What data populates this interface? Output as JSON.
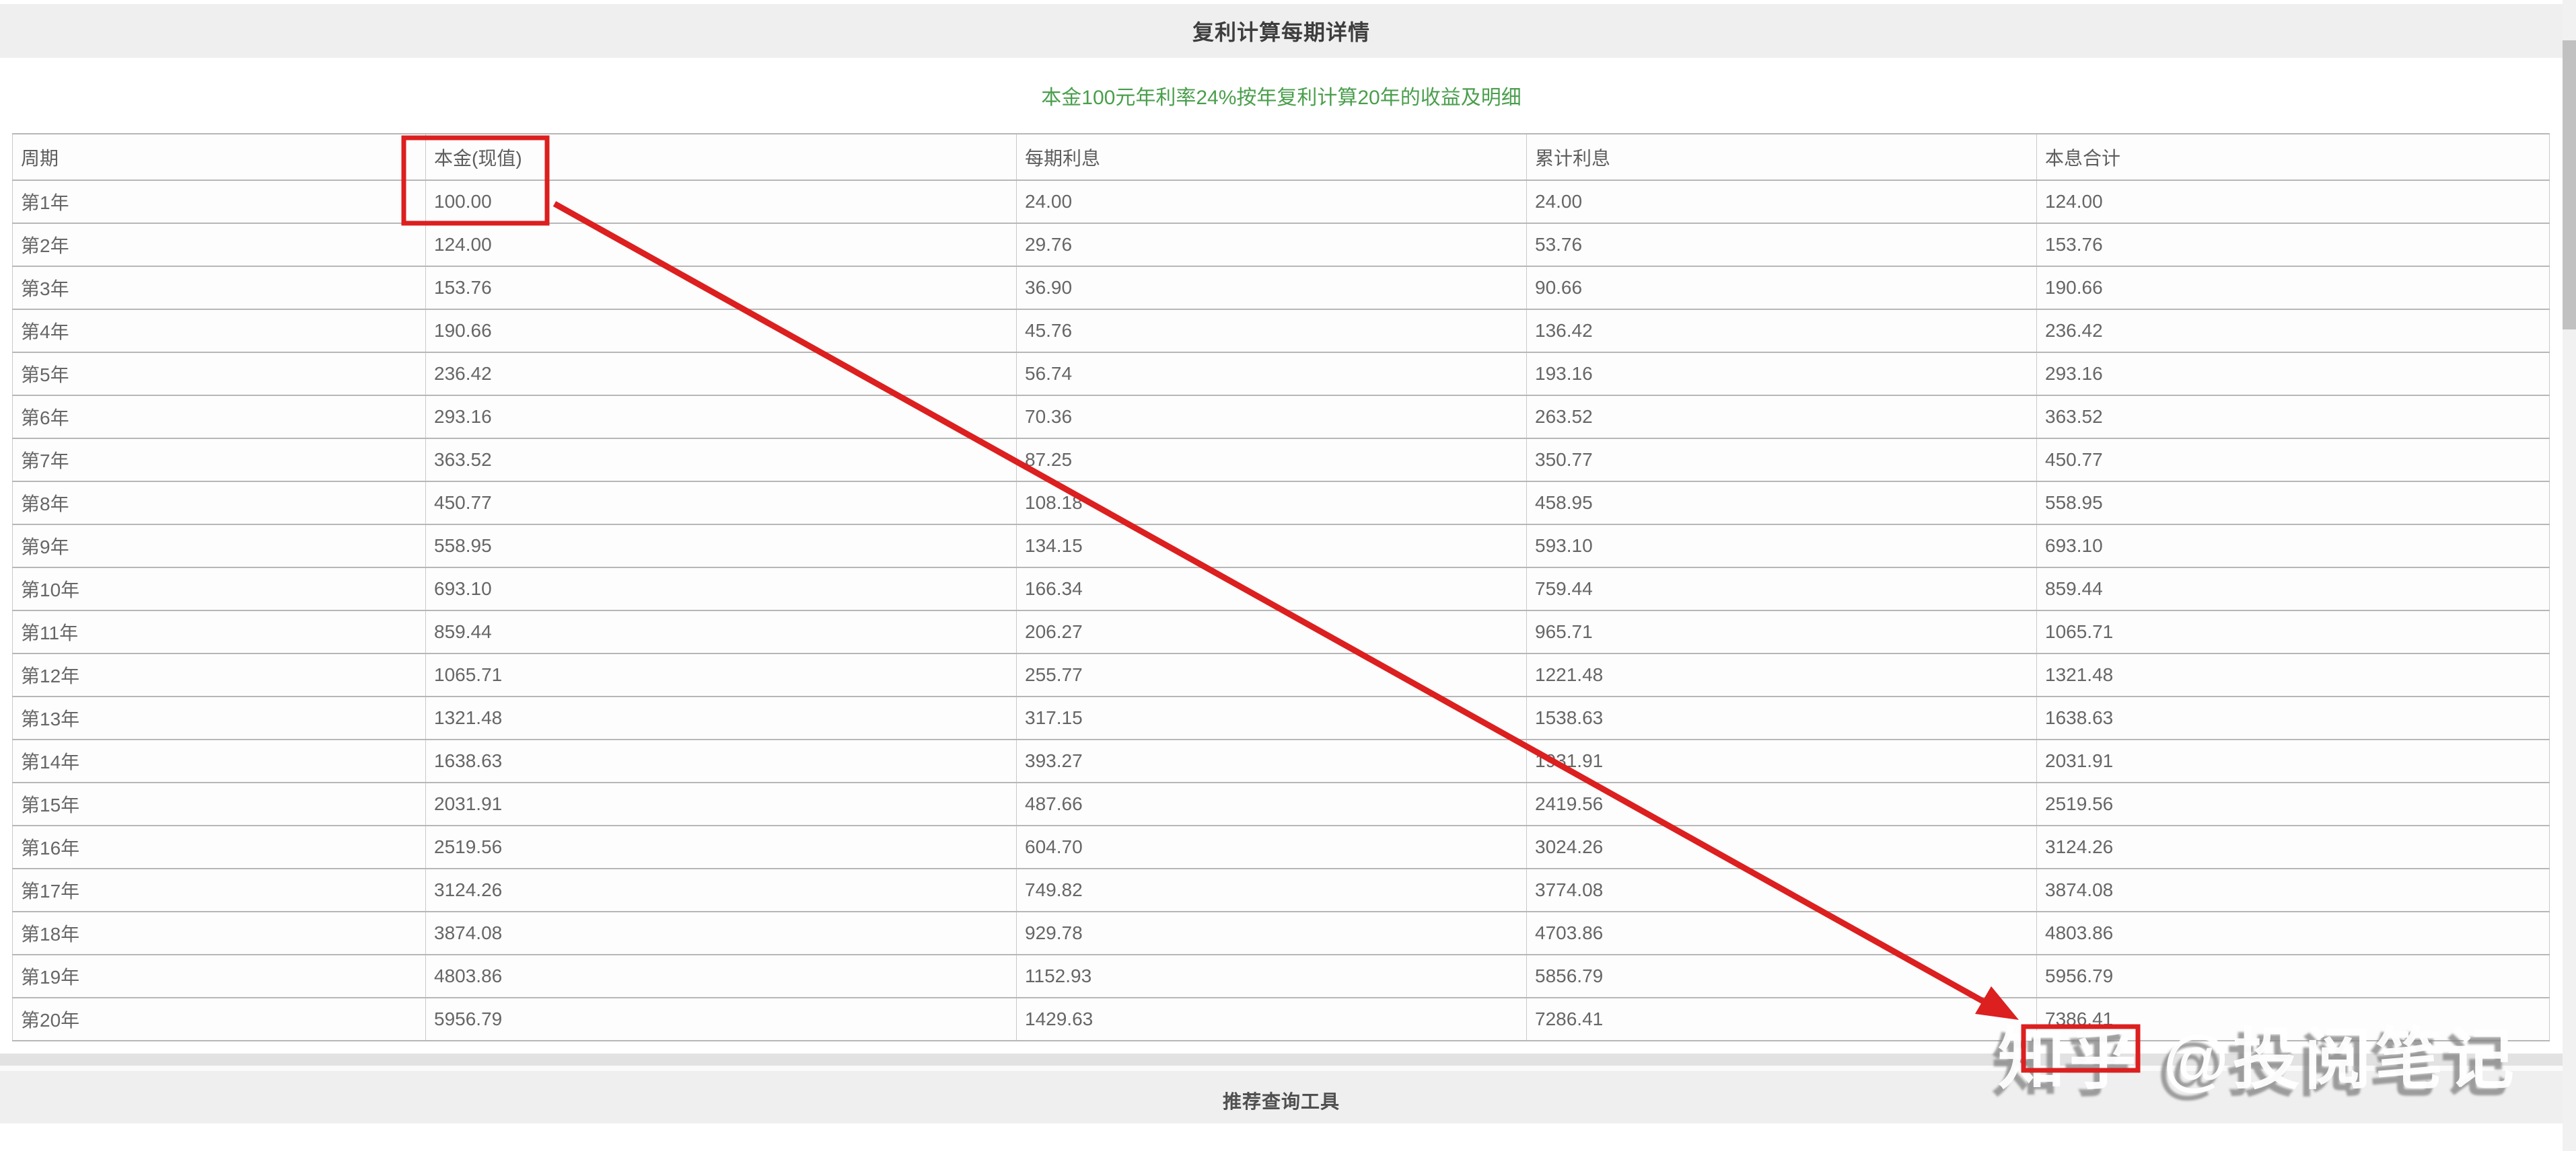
{
  "page": {
    "title": "复利计算每期详情",
    "subtitle": "本金100元年利率24%按年复利计算20年的收益及明细",
    "footer_title": "推荐查询工具",
    "watermark": "知乎 @投阅笔记"
  },
  "colors": {
    "annotation_red": "#dc1f1f",
    "subtitle_green": "#4a9e4c",
    "bar_gray": "#efefef"
  },
  "table": {
    "columns": [
      "周期",
      "本金(现值)",
      "每期利息",
      "累计利息",
      "本息合计"
    ],
    "rows": [
      [
        "第1年",
        "100.00",
        "24.00",
        "24.00",
        "124.00"
      ],
      [
        "第2年",
        "124.00",
        "29.76",
        "53.76",
        "153.76"
      ],
      [
        "第3年",
        "153.76",
        "36.90",
        "90.66",
        "190.66"
      ],
      [
        "第4年",
        "190.66",
        "45.76",
        "136.42",
        "236.42"
      ],
      [
        "第5年",
        "236.42",
        "56.74",
        "193.16",
        "293.16"
      ],
      [
        "第6年",
        "293.16",
        "70.36",
        "263.52",
        "363.52"
      ],
      [
        "第7年",
        "363.52",
        "87.25",
        "350.77",
        "450.77"
      ],
      [
        "第8年",
        "450.77",
        "108.18",
        "458.95",
        "558.95"
      ],
      [
        "第9年",
        "558.95",
        "134.15",
        "593.10",
        "693.10"
      ],
      [
        "第10年",
        "693.10",
        "166.34",
        "759.44",
        "859.44"
      ],
      [
        "第11年",
        "859.44",
        "206.27",
        "965.71",
        "1065.71"
      ],
      [
        "第12年",
        "1065.71",
        "255.77",
        "1221.48",
        "1321.48"
      ],
      [
        "第13年",
        "1321.48",
        "317.15",
        "1538.63",
        "1638.63"
      ],
      [
        "第14年",
        "1638.63",
        "393.27",
        "1931.91",
        "2031.91"
      ],
      [
        "第15年",
        "2031.91",
        "487.66",
        "2419.56",
        "2519.56"
      ],
      [
        "第16年",
        "2519.56",
        "604.70",
        "3024.26",
        "3124.26"
      ],
      [
        "第17年",
        "3124.26",
        "749.82",
        "3774.08",
        "3874.08"
      ],
      [
        "第18年",
        "3874.08",
        "929.78",
        "4703.86",
        "4803.86"
      ],
      [
        "第19年",
        "4803.86",
        "1152.93",
        "5856.79",
        "5956.79"
      ],
      [
        "第20年",
        "5956.79",
        "1429.63",
        "7286.41",
        "7386.41"
      ]
    ]
  }
}
